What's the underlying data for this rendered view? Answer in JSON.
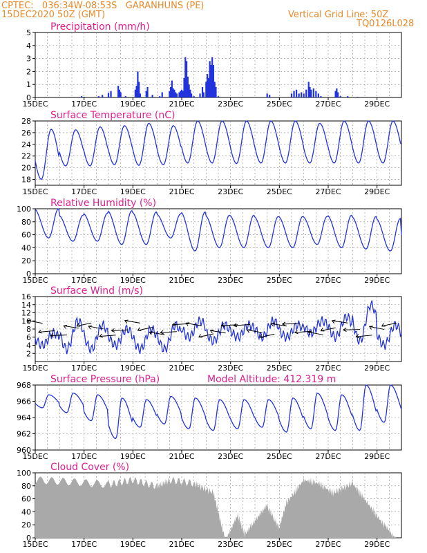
{
  "header": {
    "line1": "CPTEC:   036:34W-08:53S   GARANHUNS (PE)",
    "line2": "15DEC2020 50Z (GMT)",
    "grid_note": "Vertical Grid Line: 50Z",
    "code": "TQ0126L028"
  },
  "colors": {
    "header": "#e88a2a",
    "title": "#e0208e",
    "series": "#2233dd",
    "cloud": "#a9a9a9",
    "grid": "#888888"
  },
  "x_ticks": [
    "15DEC",
    "17DEC",
    "19DEC",
    "21DEC",
    "23DEC",
    "25DEC",
    "27DEC",
    "29DEC"
  ],
  "chart_data": [
    {
      "type": "bar",
      "title": "Precipitation (mm/h)",
      "ylim": [
        0,
        5
      ],
      "yticks": [
        "0",
        "1",
        "2",
        "3",
        "4",
        "5"
      ],
      "x_range_days": [
        15,
        30
      ],
      "points": [
        [
          16.9,
          0.1
        ],
        [
          17.0,
          0.05
        ],
        [
          17.6,
          0.1
        ],
        [
          17.75,
          0.2
        ],
        [
          18.0,
          0.35
        ],
        [
          18.1,
          0.5
        ],
        [
          18.4,
          0.9
        ],
        [
          18.45,
          0.6
        ],
        [
          18.5,
          0.4
        ],
        [
          18.7,
          0.1
        ],
        [
          19.1,
          0.6
        ],
        [
          19.15,
          0.9
        ],
        [
          19.2,
          2.0
        ],
        [
          19.25,
          1.2
        ],
        [
          19.3,
          0.3
        ],
        [
          19.55,
          0.5
        ],
        [
          19.6,
          0.8
        ],
        [
          19.8,
          0.2
        ],
        [
          20.1,
          0.1
        ],
        [
          20.2,
          0.4
        ],
        [
          20.5,
          0.5
        ],
        [
          20.55,
          0.8
        ],
        [
          20.6,
          1.3
        ],
        [
          20.65,
          0.7
        ],
        [
          20.7,
          0.6
        ],
        [
          20.75,
          0.4
        ],
        [
          20.8,
          0.3
        ],
        [
          20.9,
          0.4
        ],
        [
          20.95,
          0.5
        ],
        [
          21.0,
          0.6
        ],
        [
          21.05,
          0.5
        ],
        [
          21.1,
          1.5
        ],
        [
          21.15,
          3.1
        ],
        [
          21.2,
          2.8
        ],
        [
          21.25,
          1.6
        ],
        [
          21.3,
          1.0
        ],
        [
          21.35,
          0.6
        ],
        [
          21.4,
          0.3
        ],
        [
          21.5,
          0.1
        ],
        [
          21.75,
          0.3
        ],
        [
          21.85,
          0.8
        ],
        [
          21.9,
          0.4
        ],
        [
          22.0,
          1.2
        ],
        [
          22.05,
          1.8
        ],
        [
          22.1,
          1.5
        ],
        [
          22.15,
          2.8
        ],
        [
          22.2,
          2.5
        ],
        [
          22.25,
          3.1
        ],
        [
          22.3,
          2.5
        ],
        [
          22.35,
          1.2
        ],
        [
          22.4,
          0.8
        ],
        [
          22.5,
          0.1
        ],
        [
          24.5,
          0.3
        ],
        [
          24.6,
          0.2
        ],
        [
          25.5,
          0.3
        ],
        [
          25.6,
          0.5
        ],
        [
          25.7,
          0.6
        ],
        [
          25.8,
          0.3
        ],
        [
          25.9,
          0.4
        ],
        [
          26.0,
          0.3
        ],
        [
          26.1,
          0.6
        ],
        [
          26.2,
          1.2
        ],
        [
          26.25,
          0.8
        ],
        [
          26.3,
          0.6
        ],
        [
          26.4,
          0.7
        ],
        [
          26.5,
          0.5
        ],
        [
          26.6,
          0.3
        ],
        [
          26.7,
          0.1
        ],
        [
          27.3,
          0.5
        ],
        [
          27.35,
          0.7
        ],
        [
          27.4,
          0.4
        ],
        [
          27.5,
          0.1
        ],
        [
          27.8,
          0.1
        ],
        [
          28.2,
          0.05
        ]
      ]
    },
    {
      "type": "line",
      "title": "Surface Temperature (nC)",
      "ylim": [
        17,
        28
      ],
      "yticks": [
        "18",
        "20",
        "22",
        "24",
        "26",
        "28"
      ],
      "x_range_days": [
        15,
        30
      ],
      "daily_min": [
        18.0,
        20.3,
        20.3,
        20.5,
        20.4,
        20.5,
        20.8,
        20.8,
        20.7,
        20.8,
        20.8,
        20.8,
        20.8,
        20.8,
        20.8
      ],
      "daily_max": [
        26.6,
        26.5,
        27.0,
        27.2,
        27.6,
        27.2,
        28.0,
        28.0,
        28.0,
        28.0,
        28.0,
        27.6,
        28.0,
        28.0,
        28.0
      ],
      "end_value": 24.0
    },
    {
      "type": "line",
      "title": "Relative Humidity (%)",
      "ylim": [
        0,
        100
      ],
      "yticks": [
        "0",
        "20",
        "40",
        "60",
        "80",
        "100"
      ],
      "x_range_days": [
        15,
        30
      ],
      "daily_max": [
        100,
        90,
        93,
        97,
        95,
        92,
        95,
        90,
        90,
        88,
        88,
        88,
        90,
        88,
        85
      ],
      "daily_min": [
        55,
        50,
        50,
        45,
        45,
        55,
        35,
        40,
        40,
        40,
        40,
        45,
        40,
        38,
        35
      ],
      "end_value": 60
    },
    {
      "type": "line",
      "title": "Surface Wind (m/s)",
      "ylim": [
        0,
        16
      ],
      "yticks": [
        "2",
        "4",
        "6",
        "8",
        "10",
        "12",
        "14",
        "16"
      ],
      "x_range_days": [
        15,
        30
      ],
      "daily_max": [
        7,
        10,
        9,
        8,
        8,
        9,
        10,
        9,
        9,
        10,
        9,
        10,
        11,
        14,
        9
      ],
      "daily_min": [
        4,
        3,
        3,
        4,
        3,
        3,
        6,
        5,
        6,
        6,
        6,
        7,
        6,
        5,
        4
      ]
    },
    {
      "type": "line",
      "title": "Surface Pressure (hPa)",
      "annotation": "Model Altitude: 412.319  m",
      "ylim": [
        960,
        968
      ],
      "yticks": [
        "960",
        "962",
        "964",
        "966",
        "968"
      ],
      "x_range_days": [
        15,
        30
      ],
      "daily_max": [
        966.8,
        967.0,
        966.8,
        966.4,
        966.2,
        966.6,
        966.4,
        966.2,
        966.2,
        966.2,
        966.4,
        967.0,
        966.8,
        968.0,
        968.0
      ],
      "daily_min": [
        965.2,
        964.6,
        963.6,
        961.4,
        962.8,
        963.2,
        962.6,
        962.4,
        962.6,
        962.8,
        962.2,
        962.6,
        962.4,
        962.4,
        963.4
      ]
    },
    {
      "type": "bar",
      "title": "Cloud Cover (%)",
      "ylim": [
        0,
        100
      ],
      "yticks": [
        "0",
        "20",
        "40",
        "60",
        "80",
        "100"
      ],
      "x_range_days": [
        15,
        30
      ],
      "segments": [
        [
          15.0,
          95
        ],
        [
          16.5,
          92
        ],
        [
          18.0,
          88
        ],
        [
          19.0,
          95
        ],
        [
          20.0,
          85
        ],
        [
          20.5,
          95
        ],
        [
          21.5,
          90
        ],
        [
          22.3,
          75
        ],
        [
          22.8,
          0
        ],
        [
          23.3,
          40
        ],
        [
          23.6,
          10
        ],
        [
          24.0,
          30
        ],
        [
          24.5,
          55
        ],
        [
          25.0,
          20
        ],
        [
          25.3,
          60
        ],
        [
          26.0,
          95
        ],
        [
          26.6,
          90
        ],
        [
          27.2,
          75
        ],
        [
          28.0,
          90
        ],
        [
          28.6,
          60
        ],
        [
          29.3,
          25
        ],
        [
          29.8,
          0
        ]
      ]
    }
  ]
}
